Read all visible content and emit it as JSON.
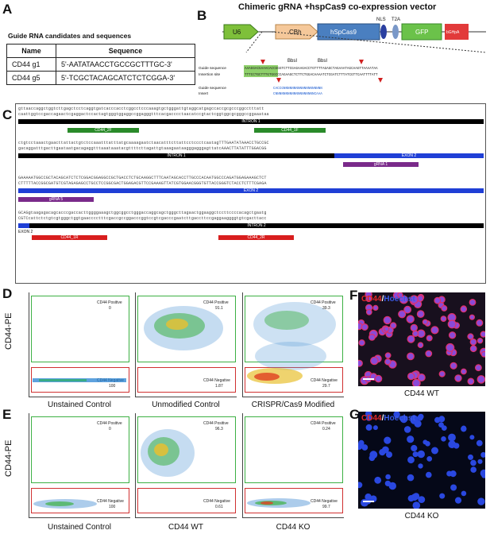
{
  "panels": {
    "A": "A",
    "B": "B",
    "C": "C",
    "D": "D",
    "E": "E",
    "F": "F",
    "G": "G"
  },
  "panel_a": {
    "title": "Guide RNA candidates and sequences",
    "headers": [
      "Name",
      "Sequence"
    ],
    "rows": [
      {
        "name": "CD44 g1",
        "seq": "5'-AATATAACCTGCCGCTTTGC-3'"
      },
      {
        "name": "CD44 g5",
        "seq": "5'-TCGCTACAGCATCTCTCGGA-3'"
      }
    ]
  },
  "panel_b": {
    "title": "Chimeric gRNA +hspCas9 co-expression vector",
    "u6": "U6",
    "cbh": "CBh",
    "cas9": "hSpCas9",
    "gfp": "GFP",
    "pa": "bGHpA",
    "nls": "NLS",
    "t2a": "T2A",
    "bbs1": "BbsI",
    "bbs2": "BbsI",
    "guide_seq_label": "Guide sequence",
    "insertion_label": "Insertion site",
    "guide_seq2_label": "Guide sequence",
    "insert_label": "Insert",
    "seq_top": "AAAGGACGAAACACCGGGTCTTCGAGAAGACCTGTTTTAGAGCTAGAAATAGCAAGTTAAAATAA",
    "seq_bot": "TTTCCTGCTTTGTGGCCCAGAAGCTCTTCTGGACAAAATCTCGATCTTTATCGTTCAATTTTATT",
    "insert_top": "CACCGNNNNNNNNNNNNNNNNNNN",
    "insert_bot": "CNNNNNNNNNNNNNNNNNNNCAAA"
  },
  "panel_c": {
    "seq_lines": [
      "gttaaccaggctggtcttgagctcctcaggtgatcacccacctcggcctcccaaagtgctgggattgtaggcatgagccaccgcgcccggcctttatt",
      "caattggtccgaccagaactcgaggactccactagtgggtggaggccggagggtttcacgacccctaacatccgtactcggtggcgcgggccggaaataa",
      "ctgtcctaaactgaacttattactgtctccaaatttatttatgcaaaagaatctaacatttcttattcctccctcaatagTTTGAATATAAACCTGCCGC",
      "gacaggatttgacttgaataatgacagaggtttaaataaatacgttttcttagattgtaaagaataagggagggagttatcAAACTTATATTTGGACGG",
      "GAAAAATGGCCGCTACAGCATCTCTCGGACGGAGGCCGCTGACCTCTGCAAGGCTTTCAATAGCACCTTGCCCACAATGGCCCAGATGGAGAAAGCTCT",
      "CTTTTTACCGGCGATGTCGTAGAGAGCCTGCCTCCGGCGACTGGAGACGTTCCGAAAGTTATCGTGGAACGGGTGTTACCGGGTCTACCTCTTTCGAGA",
      "GCAGgtaagagacagcacccgaccacttggggaaagctggcggcctgggaccaggcagctgggcttagaactggaaggctccttccccacagctgaatg",
      "CGTCcattctctgtcgtgggctggtgaacccctttcgaccgccggacccggtccgtcgacccgaatcttgaccttccgaggaaggggtgtcgacttacc"
    ],
    "intron1": "INTRON 1",
    "exon2a": "EXON 2",
    "intron1b": "INTRON 1",
    "exon2b": "EXON 2",
    "exon2c": "EXON 2",
    "intron2": "INTRON 2",
    "exon2d": "EXON 2",
    "p2f": "CD44_2F",
    "p1f": "CD44_1F",
    "g1": "gRNA 1",
    "g5": "gRNA 5",
    "p1r": "CD44_1R",
    "p2r": "CD44_2R"
  },
  "panel_d": {
    "ylabel": "CD44-PE",
    "plots": [
      {
        "caption": "Unstained Control",
        "pos_label": "CD44 Positive",
        "pos": "0",
        "neg_label": "CD44 Negative",
        "neg": "100"
      },
      {
        "caption": "Unmodified Control",
        "pos_label": "CD44 Positive",
        "pos": "91.1",
        "neg_label": "CD44 Negative",
        "neg": "1.87"
      },
      {
        "caption": "CRISPR/Cas9 Modified",
        "pos_label": "CD44 Positive",
        "pos": "39.3",
        "neg_label": "CD44 Negative",
        "neg": "29.7"
      }
    ]
  },
  "panel_e": {
    "ylabel": "CD44-PE",
    "plots": [
      {
        "caption": "Unstained Control",
        "pos_label": "CD44 Positive",
        "pos": "0",
        "neg_label": "CD44 Negative",
        "neg": "100"
      },
      {
        "caption": "CD44 WT",
        "pos_label": "CD44 Positive",
        "pos": "96.3",
        "neg_label": "CD44 Negative",
        "neg": "0.61"
      },
      {
        "caption": "CD44 KO",
        "pos_label": "CD44 Positive",
        "pos": "0.24",
        "neg_label": "CD44 Negative",
        "neg": "99.7"
      }
    ]
  },
  "panel_f": {
    "label_a": "CD44",
    "label_sep": "/",
    "label_b": "Hoechst",
    "caption": "CD44 WT"
  },
  "panel_g": {
    "label_a": "CD44",
    "label_sep": "/",
    "label_b": "Hoechst",
    "caption": "CD44 KO"
  },
  "colors": {
    "gate_green": "#3cb043",
    "gate_red": "#d03030",
    "intron": "#000000",
    "exon": "#1f3fd6",
    "primer": "#2a8a2a",
    "grna": "#7a2a8a",
    "rev_primer": "#d81e1e"
  }
}
